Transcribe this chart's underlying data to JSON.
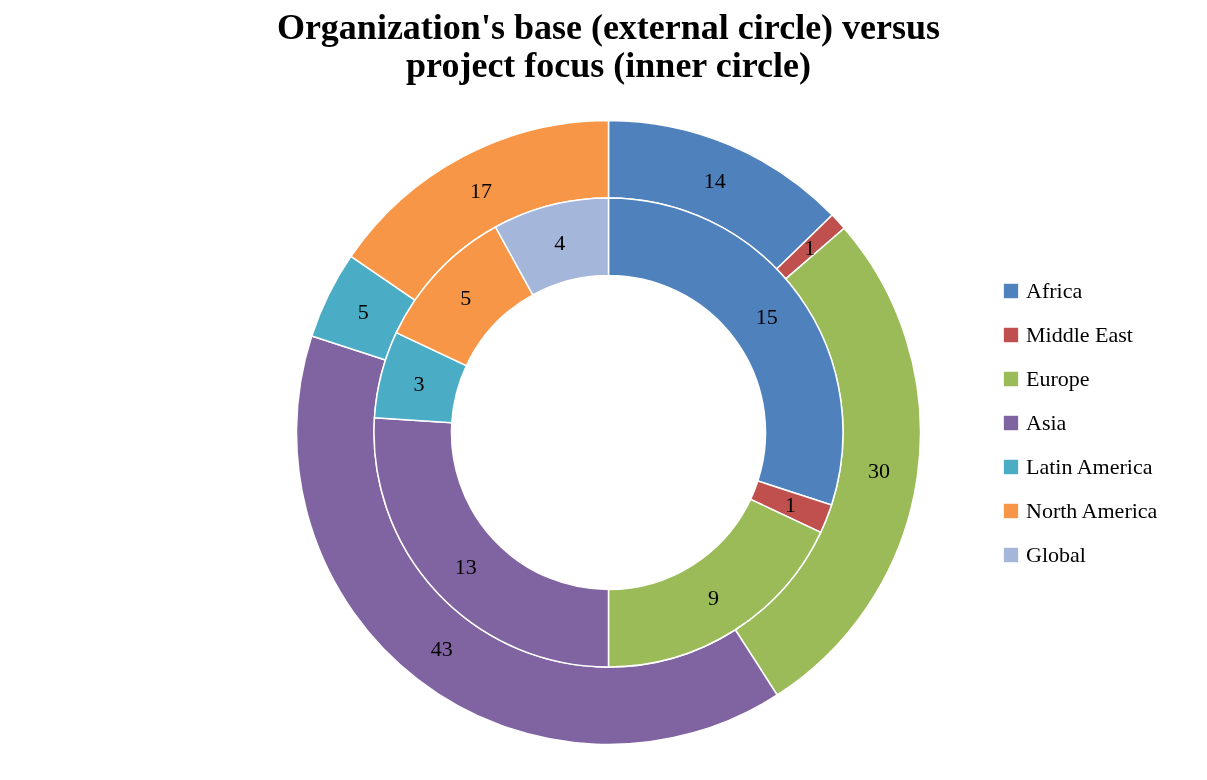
{
  "chart_data": {
    "type": "donut",
    "title": "Organization's base (external circle) versus project focus (inner circle)",
    "categories": [
      "Africa",
      "Middle East",
      "Europe",
      "Asia",
      "Latin America",
      "North America",
      "Global"
    ],
    "colors": [
      "#4f81bd",
      "#c0504d",
      "#9bbb59",
      "#8064a2",
      "#4bacc6",
      "#f79646",
      "#a5b6db"
    ],
    "series": [
      {
        "values": [
          14,
          1,
          30,
          43,
          5,
          17,
          null
        ]
      },
      {
        "values": [
          15,
          1,
          9,
          13,
          3,
          5,
          4
        ]
      }
    ],
    "data_labels": true,
    "legend": "right"
  }
}
